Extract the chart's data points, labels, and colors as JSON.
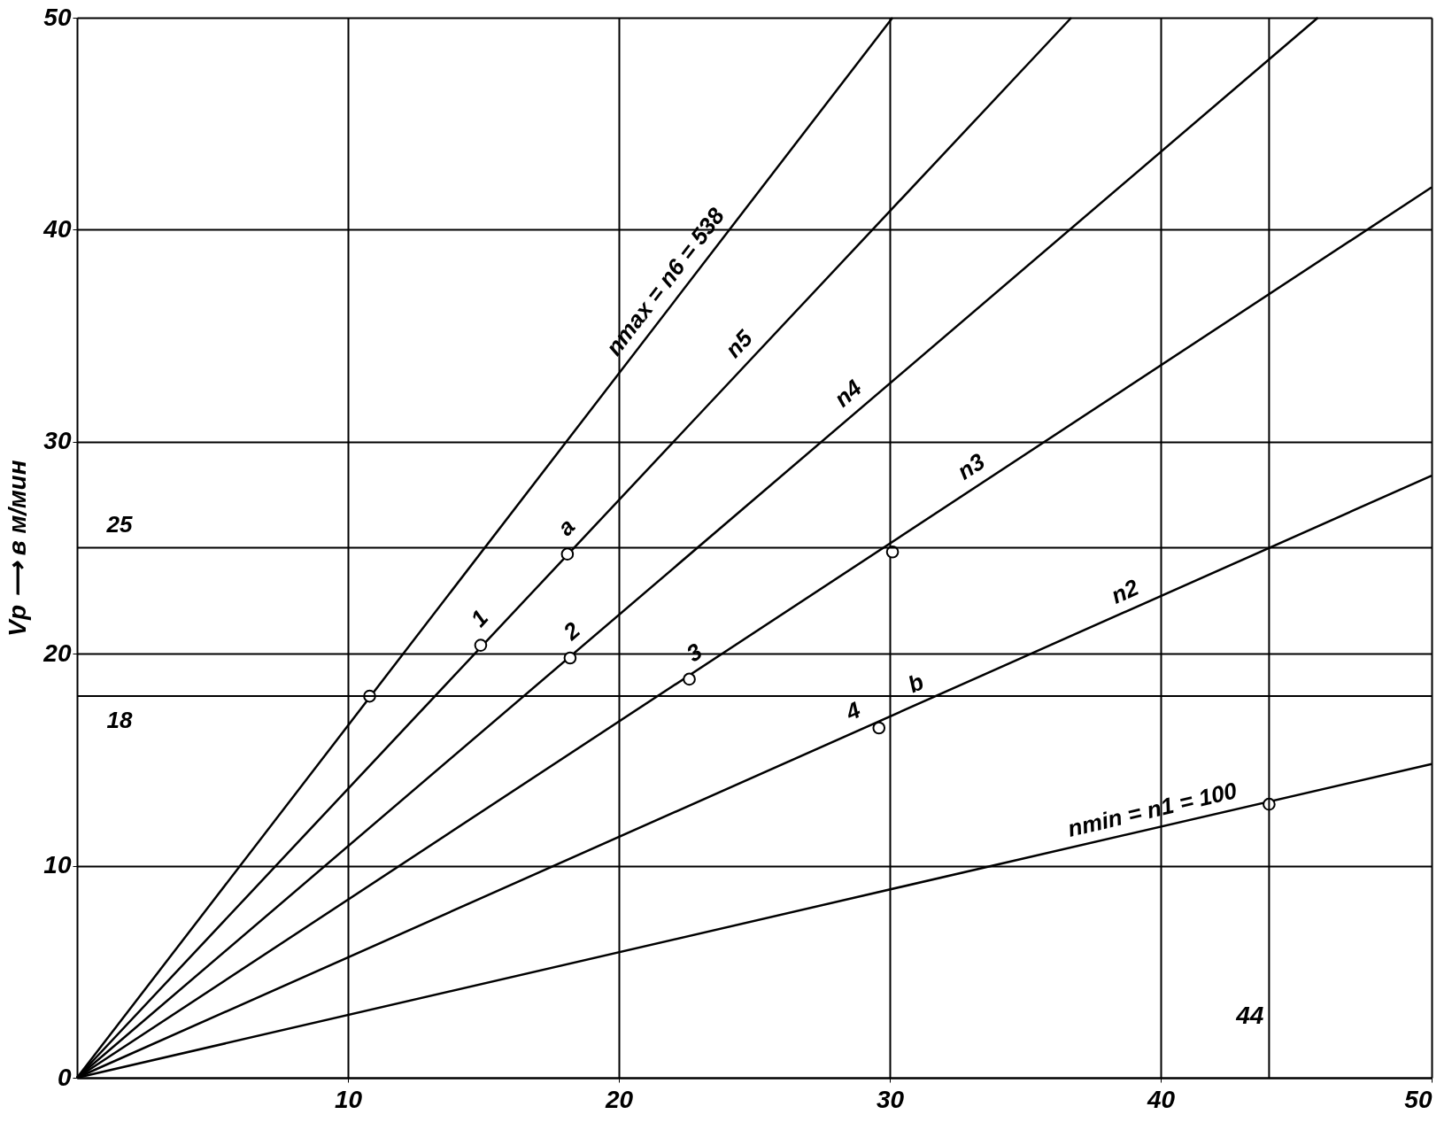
{
  "chart_data": {
    "type": "line",
    "ylabel": "Vp ⟶ в м/мин",
    "xlim": [
      0,
      50
    ],
    "ylim": [
      0,
      50
    ],
    "xticks": [
      10,
      20,
      30,
      40,
      50
    ],
    "yticks": [
      0,
      10,
      20,
      30,
      40,
      50
    ],
    "grid": true,
    "line_style": "solid",
    "marker": "none",
    "series": [
      {
        "color": "#000000",
        "x": [
          0,
          30.1
        ],
        "values": [
          0,
          50
        ]
      },
      {
        "color": "#000000",
        "x": [
          0,
          36.7
        ],
        "values": [
          0,
          50
        ]
      },
      {
        "color": "#000000",
        "x": [
          0,
          45.8
        ],
        "values": [
          0,
          50
        ]
      },
      {
        "color": "#000000",
        "x": [
          0,
          50
        ],
        "values": [
          0,
          42
        ]
      },
      {
        "color": "#000000",
        "x": [
          0,
          50
        ],
        "values": [
          0,
          28.4
        ]
      },
      {
        "color": "#000000",
        "x": [
          0,
          50
        ],
        "values": [
          0,
          14.8
        ]
      },
      {
        "type": "scatter",
        "marker": "circle",
        "color": "#000000",
        "x": [
          10.8,
          14.9,
          18.1,
          18.2,
          22.6,
          29.6,
          30.1,
          44
        ],
        "values": [
          18,
          20.4,
          24.7,
          19.8,
          18.8,
          16.5,
          24.8,
          12.9
        ]
      }
    ],
    "ref_lines": [
      {
        "axis": "y",
        "value": 25,
        "label": "25"
      },
      {
        "axis": "y",
        "value": 18,
        "label": "18"
      },
      {
        "axis": "x",
        "value": 44,
        "label": "44"
      }
    ],
    "annotations": [
      {
        "text": "nmax = n6 = 538",
        "x": 20,
        "y": 33.2
      },
      {
        "text": "n5",
        "x": 24.3,
        "y": 33.1
      },
      {
        "text": "n4",
        "x": 28.2,
        "y": 30.8
      },
      {
        "text": "n3",
        "x": 32.6,
        "y": 27.4
      },
      {
        "text": "n2",
        "x": 38.1,
        "y": 21.6
      },
      {
        "text": "nmin = n1 = 100",
        "x": 36.3,
        "y": 10.7
      },
      {
        "text": "a",
        "x": 18.1,
        "y": 24.7
      },
      {
        "text": "b",
        "x": 30.6,
        "y": 17.4
      },
      {
        "text": "1",
        "x": 14.9,
        "y": 20.4
      },
      {
        "text": "2",
        "x": 18.2,
        "y": 19.8
      },
      {
        "text": "3",
        "x": 22.6,
        "y": 18.8
      },
      {
        "text": "4",
        "x": 28.3,
        "y": 16.1
      }
    ]
  }
}
